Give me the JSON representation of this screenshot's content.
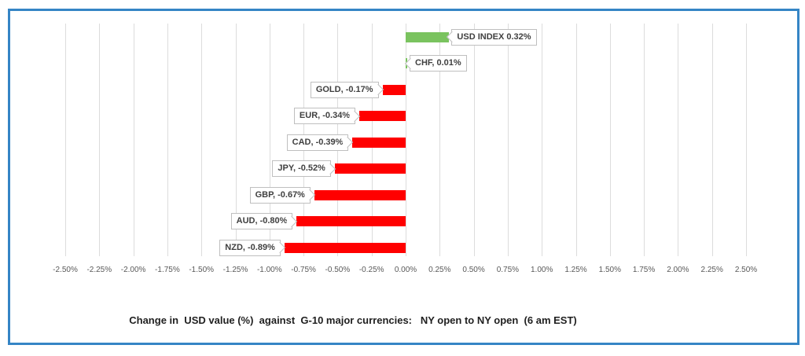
{
  "frame": {
    "border_color": "#3585c5",
    "background": "#ffffff"
  },
  "chart_data": {
    "type": "bar",
    "orientation": "horizontal",
    "title": "Change in  USD value (%)  against  G-10 major currencies:   NY open to NY open  (6 am EST)",
    "categories": [
      "USD INDEX",
      "CHF",
      "GOLD",
      "EUR",
      "CAD",
      "JPY",
      "GBP",
      "AUD",
      "NZD"
    ],
    "values": [
      0.32,
      0.01,
      -0.17,
      -0.34,
      -0.39,
      -0.52,
      -0.67,
      -0.8,
      -0.89
    ],
    "data_labels": [
      "USD INDEX 0.32%",
      "CHF, 0.01%",
      "GOLD, -0.17%",
      "EUR, -0.34%",
      "CAD, -0.39%",
      "JPY, -0.52%",
      "GBP, -0.67%",
      "AUD, -0.80%",
      "NZD, -0.89%"
    ],
    "positive_color": "#7ac35f",
    "negative_color": "#ff0000",
    "xlabel": "",
    "ylabel": "",
    "xlim": [
      -2.5,
      2.5
    ],
    "tick_step": 0.25,
    "x_ticks": [
      "-2.50%",
      "-2.25%",
      "-2.00%",
      "-1.75%",
      "-1.50%",
      "-1.25%",
      "-1.00%",
      "-0.75%",
      "-0.50%",
      "-0.25%",
      "0.00%",
      "0.25%",
      "0.50%",
      "0.75%",
      "1.00%",
      "1.25%",
      "1.50%",
      "1.75%",
      "2.00%",
      "2.25%",
      "2.50%"
    ],
    "grid": true,
    "gridline_color": "#dcdcdc",
    "legend": "none",
    "tick_label_color": "#595959",
    "title_position": "bottom"
  }
}
